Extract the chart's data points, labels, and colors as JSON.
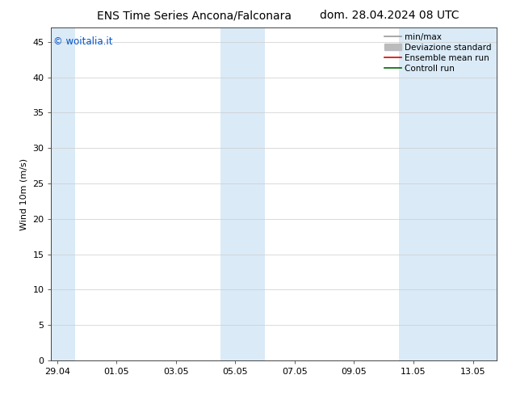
{
  "title_left": "ENS Time Series Ancona/Falconara",
  "title_right": "dom. 28.04.2024 08 UTC",
  "ylabel": "Wind 10m (m/s)",
  "watermark": "© woitalia.it",
  "watermark_color": "#0055cc",
  "ylim": [
    0,
    47
  ],
  "yticks": [
    0,
    5,
    10,
    15,
    20,
    25,
    30,
    35,
    40,
    45
  ],
  "xtick_labels": [
    "29.04",
    "01.05",
    "03.05",
    "05.05",
    "07.05",
    "09.05",
    "11.05",
    "13.05"
  ],
  "x_positions": [
    0,
    2,
    4,
    6,
    8,
    10,
    12,
    14
  ],
  "xlim": [
    -0.2,
    14.8
  ],
  "bg_color": "#ffffff",
  "plot_bg_color": "#ffffff",
  "shaded_color": "#daeaf7",
  "shaded_bands": [
    {
      "xmin": -0.2,
      "xmax": 0.6
    },
    {
      "xmin": 5.5,
      "xmax": 7.0
    },
    {
      "xmin": 11.5,
      "xmax": 14.8
    }
  ],
  "legend_items": [
    {
      "label": "min/max",
      "color": "#999999",
      "lw": 1.2,
      "ls": "-"
    },
    {
      "label": "Deviazione standard",
      "color": "#bbbbbb",
      "lw": 7,
      "ls": "-"
    },
    {
      "label": "Ensemble mean run",
      "color": "#dd0000",
      "lw": 1.2,
      "ls": "-"
    },
    {
      "label": "Controll run",
      "color": "#006600",
      "lw": 1.2,
      "ls": "-"
    }
  ],
  "title_fontsize": 10,
  "label_fontsize": 8,
  "tick_fontsize": 8,
  "legend_fontsize": 7.5
}
